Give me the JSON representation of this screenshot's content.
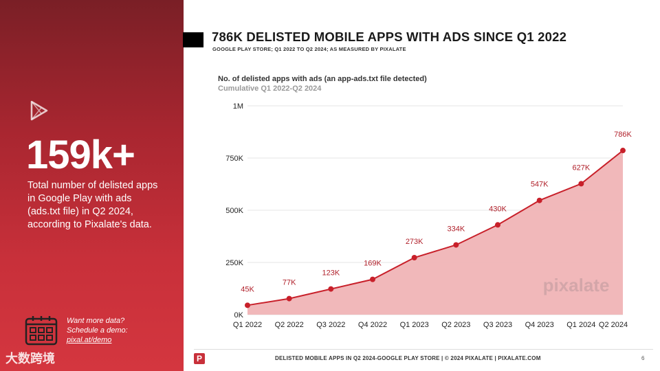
{
  "sidebar": {
    "stat": "159k+",
    "description": "Total number of delisted apps in Google Play with ads (ads.txt file) in Q2 2024, according to Pixalate's data.",
    "cta_line1": "Want more data?",
    "cta_line2": "Schedule a demo:",
    "cta_link": "pixal.at/demo",
    "watermark": "大数跨境"
  },
  "header": {
    "title": "786K DELISTED MOBILE APPS WITH ADS SINCE Q1 2022",
    "subtitle": "GOOGLE PLAY STORE; Q1 2022 TO Q2 2024; AS MEASURED BY PIXALATE"
  },
  "footer": {
    "logo": "P",
    "text": "DELISTED MOBILE APPS IN Q2 2024-GOOGLE PLAY STORE   |   © 2024 PIXALATE   |   PIXALATE.COM",
    "page": "6"
  },
  "chart_data": {
    "type": "area",
    "title": "No. of delisted apps with ads (an app-ads.txt file detected)",
    "subtitle": "Cumulative Q1 2022-Q2 2024",
    "categories": [
      "Q1 2022",
      "Q2 2022",
      "Q3 2022",
      "Q4 2022",
      "Q1 2023",
      "Q2 2023",
      "Q3 2023",
      "Q4 2023",
      "Q1 2024",
      "Q2 2024"
    ],
    "values": [
      45000,
      77000,
      123000,
      169000,
      273000,
      334000,
      430000,
      547000,
      627000,
      786000
    ],
    "data_labels": [
      "45K",
      "77K",
      "123K",
      "169K",
      "273K",
      "334K",
      "430K",
      "547K",
      "627K",
      "786K"
    ],
    "ylim": [
      0,
      1000000
    ],
    "yticks": [
      0,
      250000,
      500000,
      750000,
      1000000
    ],
    "ytick_labels": [
      "0K",
      "250K",
      "500K",
      "750K",
      "1M"
    ],
    "watermark": "pixalate",
    "colors": {
      "line": "#c8202a",
      "fill": "#f0b4b6",
      "grid": "#e6e6e6"
    }
  }
}
